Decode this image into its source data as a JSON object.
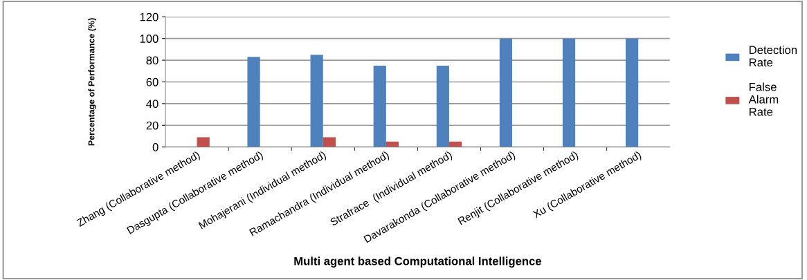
{
  "chart_data": {
    "type": "bar",
    "xlabel": "Multi agent based Computational Intelligence",
    "ylabel": "Percentage of Performance (%)",
    "categories": [
      "Zhang (Collaborative method)",
      "Dasgupta (Collaborative method)",
      "Mohajerani (Individual method)",
      "Ramachandra (Individual method)",
      "Strafrace  (Individual method)",
      "Davarakonda (Collaborative method)",
      "Renjit (Collaborative method)",
      "Xu (Collaborative method)"
    ],
    "series": [
      {
        "name": "Detection Rate",
        "color": "#4f81bd",
        "values": [
          0,
          83,
          85,
          75,
          75,
          100,
          100,
          100
        ]
      },
      {
        "name": "False Alarm Rate",
        "color": "#c0504d",
        "values": [
          9,
          0,
          9,
          5,
          5,
          0,
          0,
          0
        ]
      }
    ],
    "ylim": [
      0,
      120
    ],
    "yticks": [
      0,
      20,
      40,
      60,
      80,
      100,
      120
    ],
    "grid": "y",
    "legend": "right"
  }
}
